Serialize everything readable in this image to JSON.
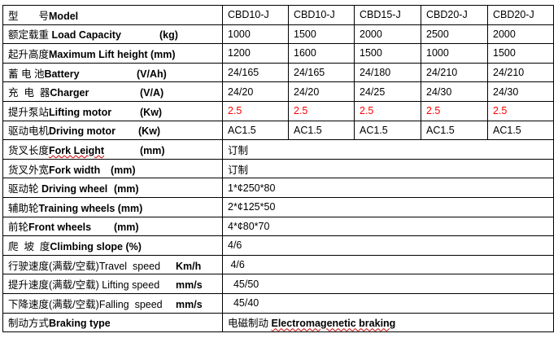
{
  "table": {
    "rows": [
      {
        "cn": "型　　号",
        "en": "Model",
        "unit": "",
        "values": [
          "CBD10-J",
          "CBD10-J",
          "CBD15-J",
          "CBD20-J",
          "CBD20-J"
        ]
      },
      {
        "cn": "额定载重 ",
        "en": "Load Capacity",
        "unit": "(kg)",
        "values": [
          "1000",
          "1500",
          "2000",
          "2500",
          "2000"
        ]
      },
      {
        "cn": "起升高度",
        "en": "Maximum Lift height (mm)",
        "unit": "",
        "values": [
          "1200",
          "1600",
          "1500",
          "1000",
          "1500"
        ]
      },
      {
        "cn": "蓄 电 池",
        "en": "Battery",
        "unit": "(V/Ah)",
        "values": [
          "24/165",
          "24/165",
          "24/180",
          "24/210",
          "24/210"
        ]
      },
      {
        "cn": "充  电  器",
        "en": "Charger",
        "unit": "(V/A)",
        "values": [
          "24/20",
          "24/20",
          "24/25",
          "24/30",
          "24/30"
        ]
      },
      {
        "cn": "提升泵站",
        "en": "Lifting motor",
        "unit": "(Kw)",
        "values": [
          "2.5",
          "2.5",
          "2.5",
          "2.5",
          "2.5"
        ],
        "value_color": "#ff0000"
      },
      {
        "cn": "驱动电机",
        "en": "Driving motor",
        "unit": "(Kw)",
        "values": [
          "AC1.5",
          "AC1.5",
          "AC1.5",
          "AC1.5",
          "AC1.5"
        ]
      },
      {
        "cn": "货叉长度",
        "en": "Fork Leight",
        "unit": "(mm)",
        "merged": "订制",
        "spell_flag": true
      },
      {
        "cn": "货叉外宽",
        "en": "Fork width",
        "unit": "(mm)",
        "merged": "订制"
      },
      {
        "cn": "驱动轮 ",
        "en": "Driving wheel",
        "unit": "(mm)",
        "merged": "1*¢250*80"
      },
      {
        "cn": "辅助轮",
        "en": "Training wheels (mm)",
        "unit": "",
        "merged": "2*¢125*50"
      },
      {
        "cn": "前轮",
        "en": "Front wheels",
        "unit": "(mm)",
        "merged": "4*¢80*70"
      },
      {
        "cn": "爬  坡  度",
        "en": "Climbing slope (%)",
        "unit": "",
        "merged": "4/6"
      },
      {
        "cn": "行驶速度(满载/空载)",
        "en": "Travel  speed",
        "unit": "Km/h",
        "en_plain": true,
        "merged": " 4/6"
      },
      {
        "cn": "提升速度(满载/空载) ",
        "en": "Lifting speed",
        "unit": "mm/s",
        "en_plain": true,
        "merged": "  45/50"
      },
      {
        "cn": "下降速度(满载/空载)",
        "en": "Falling  speed",
        "unit": "mm/s",
        "en_plain": true,
        "merged": "  45/40"
      },
      {
        "cn": "制动方式",
        "en": "Braking type",
        "unit": "",
        "merged_cn": "电磁制动 ",
        "merged": "Electromagenetic braking"
      }
    ]
  },
  "colors": {
    "highlight": "#ff0000",
    "border": "#000000"
  }
}
